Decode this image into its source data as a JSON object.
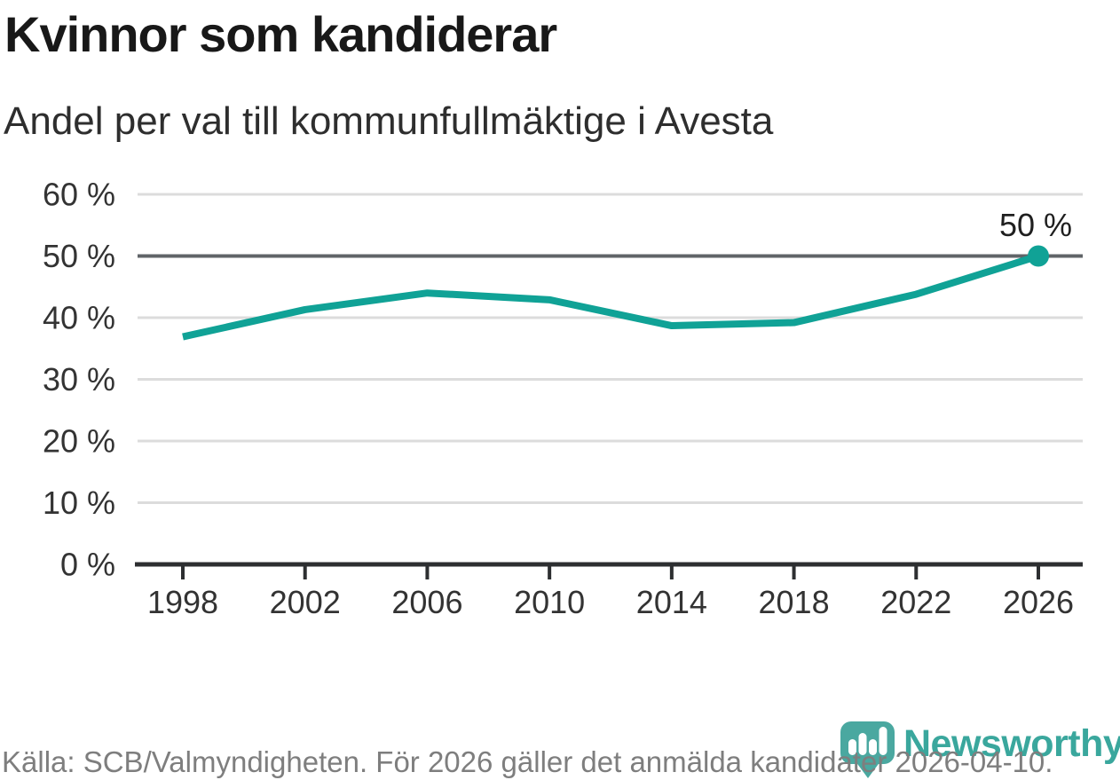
{
  "header": {
    "title": "Kvinnor som kandiderar",
    "subtitle": "Andel per val till kommunfullmäktige i Avesta"
  },
  "chart_data": {
    "type": "line",
    "title": "Kvinnor som kandiderar",
    "subtitle": "Andel per val till kommunfullmäktige i Avesta",
    "x": [
      1998,
      2002,
      2006,
      2010,
      2014,
      2018,
      2022,
      2026
    ],
    "values": [
      36.9,
      41.3,
      44,
      42.9,
      38.7,
      39.2,
      43.8,
      50
    ],
    "xtick_labels": [
      "1998",
      "2002",
      "2006",
      "2010",
      "2014",
      "2018",
      "2022",
      "2026"
    ],
    "yticks": [
      0,
      10,
      20,
      30,
      40,
      50,
      60
    ],
    "ytick_labels": [
      "0 %",
      "10 %",
      "20 %",
      "30 %",
      "40 %",
      "50 %",
      "60 %"
    ],
    "ylim": [
      0,
      60
    ],
    "grid": true,
    "highlight_gridline": 50,
    "legend": "none",
    "end_point_label": "50 %",
    "colors": {
      "line": "#10a296",
      "gridline": "#dcdcdc",
      "highlight_gridline": "#606468",
      "axis": "#2d2f31",
      "tick_label": "#333333"
    }
  },
  "footer": {
    "source_text": "Källa: SCB/Valmyndigheten. För 2026 gäller det anmälda kandidater 2026-04-10."
  },
  "logo": {
    "brand_name": "Newsworthy",
    "icon": "bar-chart-bubble-icon",
    "icon_color": "#4aa8a0",
    "bar_color": "#ffffff",
    "text_color": "#3aa79d"
  }
}
